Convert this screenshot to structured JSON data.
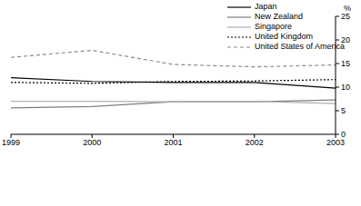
{
  "chart_data": {
    "type": "line",
    "y_label": "%",
    "categories": [
      "1999",
      "2000",
      "2001",
      "2002",
      "2003"
    ],
    "series": [
      {
        "name": "Japan",
        "color": "#000000",
        "line_style": "solid",
        "values": [
          12,
          11.2,
          11,
          11,
          9.8
        ]
      },
      {
        "name": "New Zealand",
        "color": "#7f7f7f",
        "line_style": "solid",
        "values": [
          5.6,
          5.9,
          6.9,
          6.9,
          7.3
        ]
      },
      {
        "name": "Singapore",
        "color": "#b0b0b0",
        "line_style": "solid",
        "values": [
          7,
          7,
          6.9,
          7,
          6.5
        ]
      },
      {
        "name": "United Kingdom",
        "color": "#000000",
        "line_style": "dotted",
        "values": [
          11,
          10.8,
          11.2,
          11.3,
          11.6
        ]
      },
      {
        "name": "United States of America",
        "color": "#8c8c8c",
        "line_style": "dashed",
        "values": [
          16.3,
          17.8,
          14.8,
          14.3,
          14.7
        ]
      }
    ],
    "ylim": [
      0,
      25
    ],
    "yticks": [
      0,
      5,
      10,
      15,
      20,
      25
    ],
    "grid": false,
    "legend": "upper right"
  }
}
